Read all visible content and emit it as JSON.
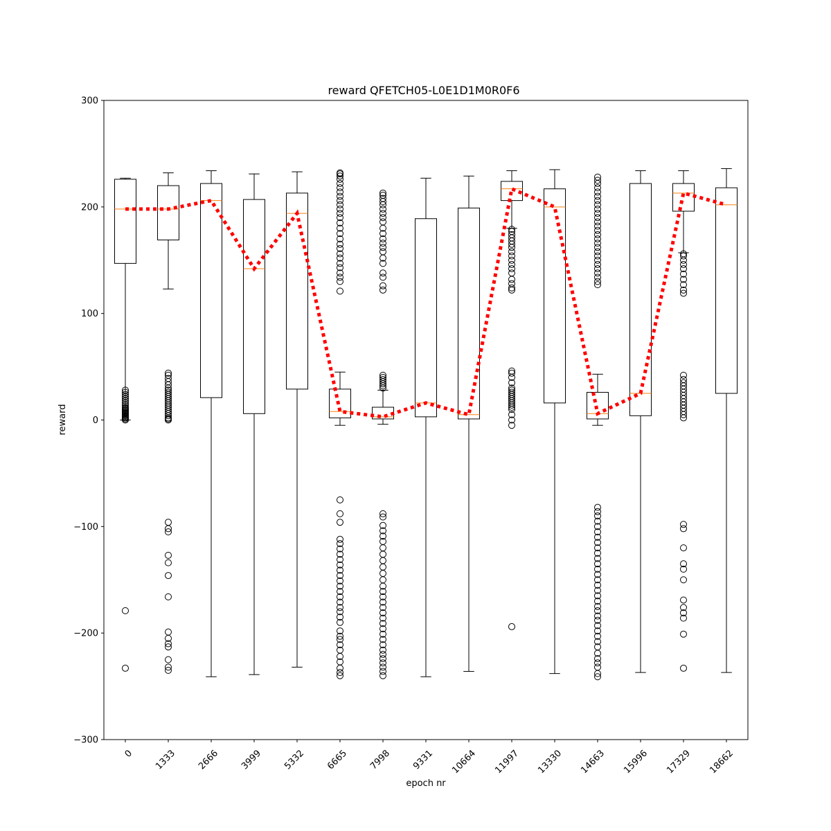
{
  "chart_data": {
    "type": "box",
    "title": "reward QFETCH05-L0E1D1M0R0F6",
    "xlabel": "epoch nr",
    "ylabel": "reward",
    "ylim": [
      -300,
      300
    ],
    "yticks": [
      -300,
      -200,
      -100,
      0,
      100,
      200,
      300
    ],
    "ytick_labels": [
      "−300",
      "−200",
      "−100",
      "0",
      "100",
      "200",
      "300"
    ],
    "grid": false,
    "categories": [
      "0",
      "1333",
      "2666",
      "3999",
      "5332",
      "6665",
      "7998",
      "9331",
      "10664",
      "11997",
      "13330",
      "14663",
      "15996",
      "17329",
      "18662"
    ],
    "boxes": [
      {
        "whislo": 0,
        "q1": 147,
        "med": 198,
        "q3": 226,
        "whishi": 227,
        "fliers": [
          -233,
          -179,
          0,
          1,
          2,
          3,
          4,
          5,
          6,
          7,
          8,
          9,
          10,
          11,
          12,
          14,
          16,
          18,
          20,
          22,
          24,
          26,
          28
        ]
      },
      {
        "whislo": 123,
        "q1": 169,
        "med": 198,
        "q3": 220,
        "whishi": 232,
        "fliers": [
          -235,
          -232,
          -225,
          -213,
          -210,
          -205,
          -199,
          -166,
          -146,
          -134,
          -127,
          -105,
          -102,
          -96,
          0,
          1,
          2,
          4,
          6,
          8,
          10,
          12,
          14,
          16,
          18,
          20,
          22,
          24,
          26,
          28,
          30,
          33,
          36,
          39,
          42,
          44
        ]
      },
      {
        "whislo": -241,
        "q1": 21,
        "med": 206,
        "q3": 222,
        "whishi": 234,
        "fliers": []
      },
      {
        "whislo": -239,
        "q1": 6,
        "med": 142,
        "q3": 207,
        "whishi": 231,
        "fliers": []
      },
      {
        "whislo": -232,
        "q1": 29,
        "med": 194,
        "q3": 213,
        "whishi": 233,
        "fliers": []
      },
      {
        "whislo": -5,
        "q1": 2,
        "med": 8,
        "q3": 29,
        "whishi": 45,
        "fliers": [
          -240,
          -237,
          -233,
          -227,
          -222,
          -216,
          -211,
          -206,
          -203,
          -198,
          -190,
          -185,
          -180,
          -176,
          -171,
          -166,
          -161,
          -156,
          -151,
          -146,
          -141,
          -136,
          -131,
          -126,
          -121,
          -116,
          -112,
          -96,
          -88,
          -75,
          121,
          130,
          134,
          138,
          143,
          147,
          152,
          156,
          161,
          165,
          170,
          175,
          180,
          185,
          190,
          194,
          198,
          202,
          206,
          210,
          214,
          218,
          222,
          226,
          229,
          231,
          232
        ]
      },
      {
        "whislo": -4,
        "q1": 1,
        "med": 3,
        "q3": 12,
        "whishi": 28,
        "fliers": [
          -240,
          -236,
          -232,
          -228,
          -224,
          -220,
          -216,
          -211,
          -206,
          -201,
          -196,
          -191,
          -186,
          -181,
          -176,
          -171,
          -166,
          -161,
          -156,
          -150,
          -144,
          -138,
          -132,
          -126,
          -120,
          -114,
          -109,
          -104,
          -99,
          -91,
          -88,
          30,
          32,
          34,
          36,
          38,
          40,
          42,
          122,
          126,
          134,
          138,
          147,
          152,
          158,
          162,
          166,
          170,
          175,
          180,
          186,
          190,
          194,
          198,
          202,
          205,
          208,
          211,
          213
        ]
      },
      {
        "whislo": -241,
        "q1": 3,
        "med": 16,
        "q3": 189,
        "whishi": 227,
        "fliers": []
      },
      {
        "whislo": -236,
        "q1": 1,
        "med": 5,
        "q3": 199,
        "whishi": 229,
        "fliers": []
      },
      {
        "whislo": 180,
        "q1": 206,
        "med": 217,
        "q3": 224,
        "whishi": 234,
        "fliers": [
          -194,
          -5,
          0,
          5,
          10,
          12,
          14,
          16,
          18,
          20,
          22,
          24,
          26,
          28,
          30,
          35,
          40,
          44,
          46,
          122,
          124,
          128,
          132,
          138,
          142,
          146,
          150,
          154,
          158,
          162,
          165,
          168,
          171,
          174,
          177,
          179
        ]
      },
      {
        "whislo": -238,
        "q1": 16,
        "med": 200,
        "q3": 217,
        "whishi": 235,
        "fliers": []
      },
      {
        "whislo": -5,
        "q1": 1,
        "med": 6,
        "q3": 26,
        "whishi": 43,
        "fliers": [
          -241,
          -238,
          -232,
          -228,
          -224,
          -219,
          -213,
          -208,
          -203,
          -198,
          -193,
          -188,
          -184,
          -179,
          -175,
          -170,
          -165,
          -160,
          -155,
          -150,
          -145,
          -140,
          -135,
          -130,
          -125,
          -120,
          -115,
          -110,
          -105,
          -100,
          -95,
          -90,
          -86,
          -82,
          127,
          130,
          134,
          138,
          142,
          146,
          150,
          154,
          158,
          162,
          166,
          170,
          174,
          178,
          182,
          186,
          190,
          194,
          198,
          202,
          206,
          210,
          214,
          218,
          222,
          225,
          228
        ]
      },
      {
        "whislo": -237,
        "q1": 4,
        "med": 25,
        "q3": 222,
        "whishi": 234,
        "fliers": []
      },
      {
        "whislo": 157,
        "q1": 196,
        "med": 213,
        "q3": 222,
        "whishi": 234,
        "fliers": [
          -233,
          -201,
          -186,
          -181,
          -176,
          -169,
          -150,
          -140,
          -135,
          -120,
          -102,
          -98,
          2,
          5,
          8,
          11,
          14,
          17,
          20,
          23,
          26,
          29,
          32,
          35,
          38,
          42,
          119,
          122,
          127,
          132,
          137,
          142,
          146,
          150,
          154,
          156
        ]
      },
      {
        "whislo": -237,
        "q1": 25,
        "med": 202,
        "q3": 218,
        "whishi": 236,
        "fliers": []
      }
    ],
    "mean_line": {
      "values": [
        198,
        198,
        206,
        142,
        194,
        8,
        3,
        16,
        5,
        217,
        200,
        6,
        25,
        213,
        202
      ],
      "color": "#ff0000",
      "style": "dotted"
    },
    "colors": {
      "box": "#000000",
      "median": "#ff7f0e",
      "mean_line": "#ff0000"
    }
  }
}
